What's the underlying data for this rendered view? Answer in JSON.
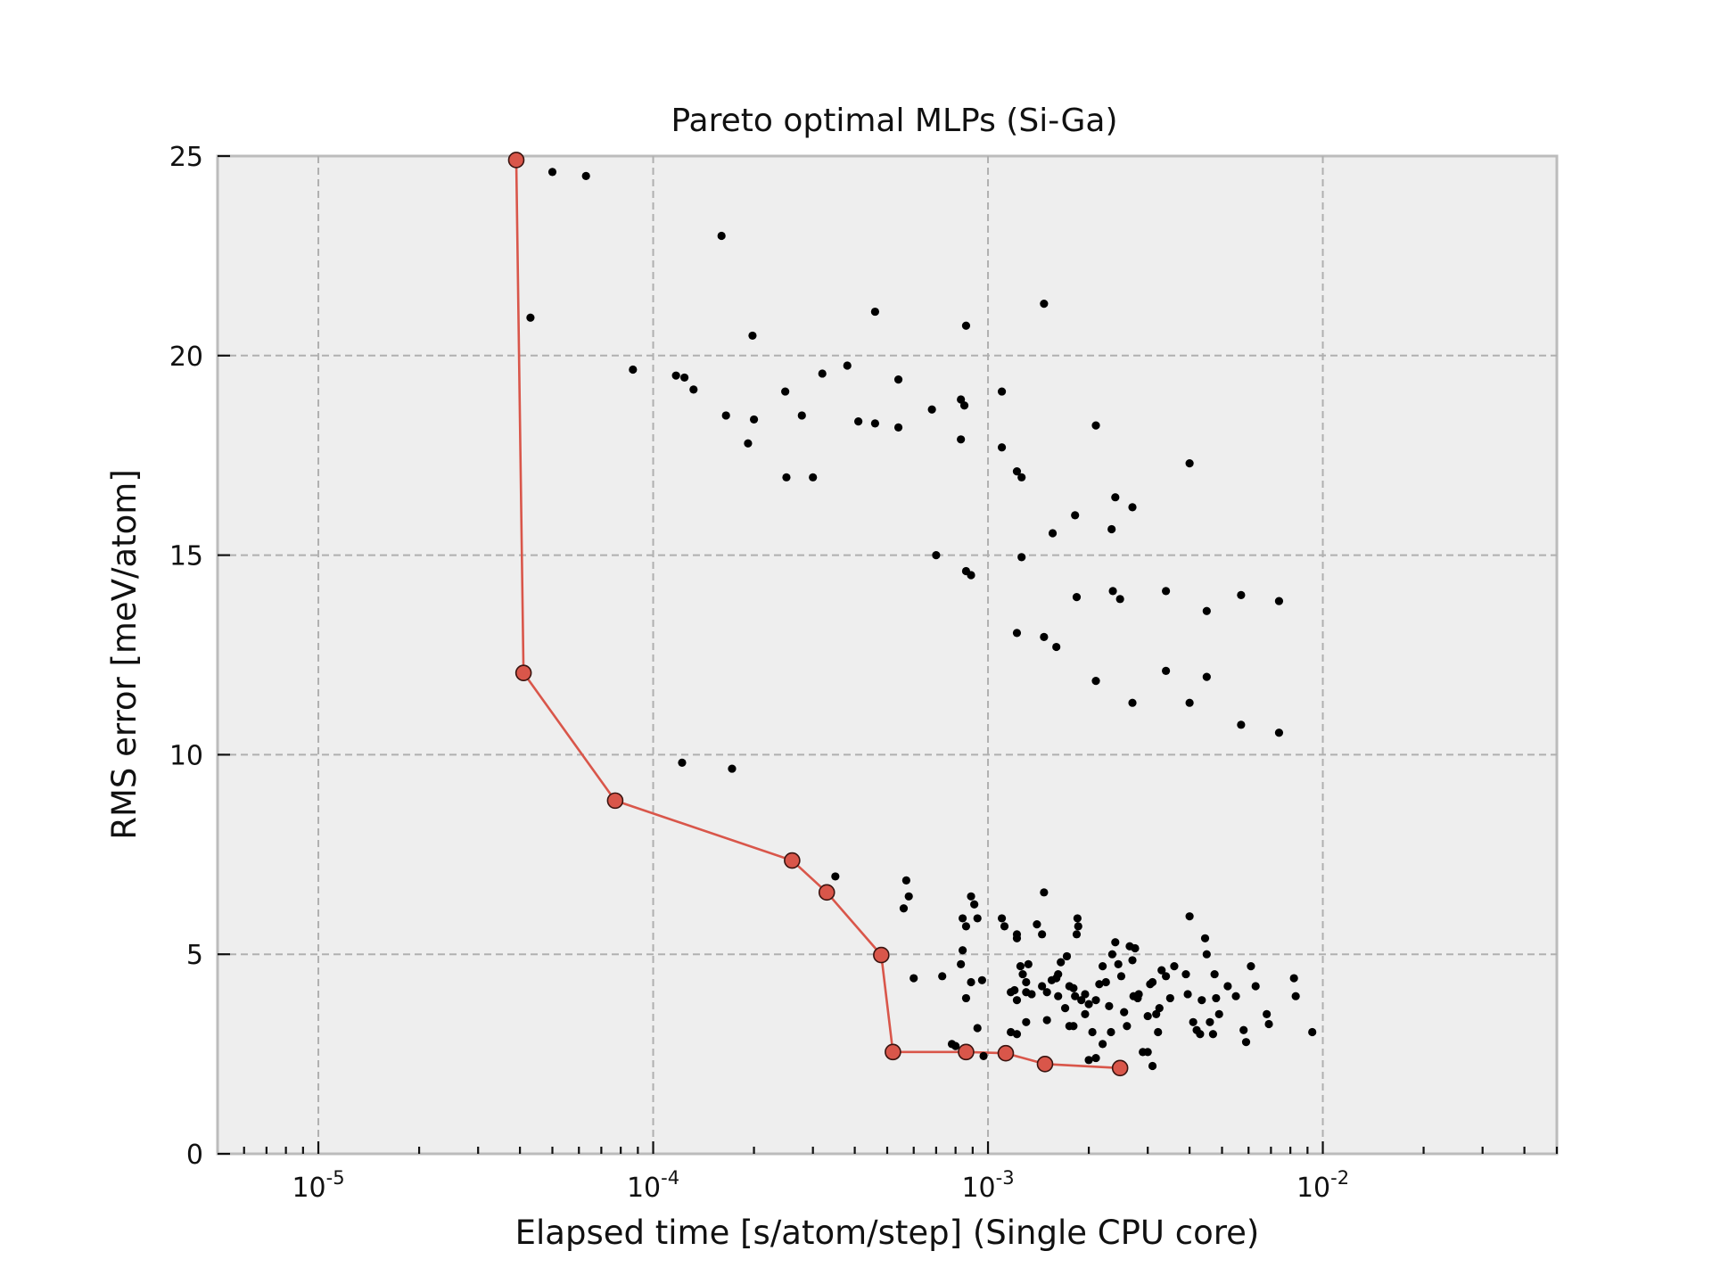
{
  "chart_data": {
    "type": "scatter",
    "title": "Pareto optimal MLPs (Si-Ga)",
    "xlabel": "Elapsed time [s/atom/step] (Single CPU core)",
    "ylabel": "RMS error [meV/atom]",
    "xscale": "log",
    "xlim": [
      5e-06,
      0.05
    ],
    "ylim": [
      0,
      25
    ],
    "grid": true,
    "x_ticks": [
      {
        "base": "10",
        "exp": "-5",
        "value": 1e-05
      },
      {
        "base": "10",
        "exp": "-4",
        "value": 0.0001
      },
      {
        "base": "10",
        "exp": "-3",
        "value": 0.001
      },
      {
        "base": "10",
        "exp": "-2",
        "value": 0.01
      }
    ],
    "y_ticks": [
      "0",
      "5",
      "10",
      "15",
      "20",
      "25"
    ],
    "colors": {
      "pareto": "#d9564a",
      "points": "#000000",
      "background": "#eeeeee"
    },
    "series": [
      {
        "type": "line",
        "points": [
          [
            3.9e-05,
            24.9
          ],
          [
            4.1e-05,
            12.05
          ],
          [
            7.7e-05,
            8.85
          ],
          [
            0.00026,
            7.35
          ],
          [
            0.00033,
            6.55
          ],
          [
            0.00048,
            4.98
          ],
          [
            0.00052,
            2.55
          ],
          [
            0.00086,
            2.55
          ],
          [
            0.00113,
            2.52
          ],
          [
            0.00148,
            2.25
          ],
          [
            0.00248,
            2.15
          ]
        ]
      },
      {
        "type": "scatter",
        "points": [
          [
            5e-05,
            24.6
          ],
          [
            6.3e-05,
            24.5
          ],
          [
            4.3e-05,
            20.95
          ],
          [
            0.00016,
            23.0
          ],
          [
            8.7e-05,
            19.65
          ],
          [
            0.000117,
            19.5
          ],
          [
            0.000124,
            19.45
          ],
          [
            0.000132,
            19.15
          ],
          [
            0.000198,
            20.5
          ],
          [
            0.000165,
            18.5
          ],
          [
            0.0002,
            18.4
          ],
          [
            0.000192,
            17.8
          ],
          [
            0.000248,
            19.1
          ],
          [
            0.000278,
            18.5
          ],
          [
            0.00025,
            16.95
          ],
          [
            0.0003,
            16.95
          ],
          [
            0.00032,
            19.55
          ],
          [
            0.00038,
            19.75
          ],
          [
            0.00041,
            18.35
          ],
          [
            0.00046,
            18.3
          ],
          [
            0.00046,
            21.1
          ],
          [
            0.00054,
            18.2
          ],
          [
            0.00054,
            19.4
          ],
          [
            0.00068,
            18.65
          ],
          [
            0.00083,
            18.9
          ],
          [
            0.00085,
            18.75
          ],
          [
            0.00086,
            20.75
          ],
          [
            0.00083,
            17.9
          ],
          [
            0.0011,
            19.1
          ],
          [
            0.0011,
            17.7
          ],
          [
            0.00122,
            17.1
          ],
          [
            0.00126,
            16.95
          ],
          [
            0.00147,
            21.3
          ],
          [
            0.0007,
            15.0
          ],
          [
            0.00086,
            14.6
          ],
          [
            0.00089,
            14.5
          ],
          [
            0.00126,
            14.95
          ],
          [
            0.00122,
            13.05
          ],
          [
            0.00147,
            12.95
          ],
          [
            0.0016,
            12.7
          ],
          [
            0.00156,
            15.55
          ],
          [
            0.00182,
            16.0
          ],
          [
            0.0021,
            18.25
          ],
          [
            0.00234,
            15.65
          ],
          [
            0.0024,
            16.45
          ],
          [
            0.0027,
            16.2
          ],
          [
            0.00184,
            13.95
          ],
          [
            0.00236,
            14.1
          ],
          [
            0.00248,
            13.9
          ],
          [
            0.0021,
            11.85
          ],
          [
            0.0027,
            11.3
          ],
          [
            0.0034,
            14.1
          ],
          [
            0.004,
            17.3
          ],
          [
            0.0045,
            13.6
          ],
          [
            0.0057,
            14.0
          ],
          [
            0.0074,
            13.85
          ],
          [
            0.0034,
            12.1
          ],
          [
            0.004,
            11.3
          ],
          [
            0.0045,
            11.95
          ],
          [
            0.0057,
            10.75
          ],
          [
            0.0074,
            10.55
          ],
          [
            0.000122,
            9.8
          ],
          [
            0.000172,
            9.65
          ],
          [
            0.00035,
            6.95
          ],
          [
            0.00057,
            6.85
          ],
          [
            0.00058,
            6.45
          ],
          [
            0.00056,
            6.15
          ],
          [
            0.0006,
            4.4
          ],
          [
            0.00073,
            4.45
          ],
          [
            0.00078,
            2.75
          ],
          [
            0.0008,
            2.7
          ],
          [
            0.00089,
            6.45
          ],
          [
            0.00091,
            6.25
          ],
          [
            0.00084,
            5.9
          ],
          [
            0.00086,
            5.7
          ],
          [
            0.00093,
            5.9
          ],
          [
            0.00084,
            5.1
          ],
          [
            0.00083,
            4.75
          ],
          [
            0.00086,
            3.9
          ],
          [
            0.00089,
            4.3
          ],
          [
            0.00096,
            4.35
          ],
          [
            0.00093,
            3.15
          ],
          [
            0.00097,
            2.45
          ],
          [
            0.0011,
            5.9
          ],
          [
            0.00112,
            5.7
          ],
          [
            0.00122,
            5.5
          ],
          [
            0.00122,
            5.4
          ],
          [
            0.00117,
            4.05
          ],
          [
            0.00125,
            4.7
          ],
          [
            0.00127,
            4.5
          ],
          [
            0.0012,
            4.1
          ],
          [
            0.0013,
            4.05
          ],
          [
            0.00122,
            3.85
          ],
          [
            0.00135,
            4.0
          ],
          [
            0.0013,
            4.3
          ],
          [
            0.00132,
            4.75
          ],
          [
            0.00117,
            3.05
          ],
          [
            0.00122,
            3.0
          ],
          [
            0.0013,
            3.3
          ],
          [
            0.0014,
            5.75
          ],
          [
            0.00147,
            6.55
          ],
          [
            0.00145,
            5.5
          ],
          [
            0.00145,
            4.2
          ],
          [
            0.0015,
            4.05
          ],
          [
            0.00155,
            4.35
          ],
          [
            0.0016,
            4.4
          ],
          [
            0.00162,
            4.5
          ],
          [
            0.0015,
            3.35
          ],
          [
            0.00162,
            3.95
          ],
          [
            0.0017,
            3.65
          ],
          [
            0.00172,
            4.95
          ],
          [
            0.00165,
            4.8
          ],
          [
            0.00175,
            4.2
          ],
          [
            0.00182,
            3.95
          ],
          [
            0.00185,
            5.9
          ],
          [
            0.00186,
            5.7
          ],
          [
            0.00184,
            5.5
          ],
          [
            0.0018,
            4.15
          ],
          [
            0.00175,
            3.2
          ],
          [
            0.0018,
            3.2
          ],
          [
            0.0019,
            3.85
          ],
          [
            0.00195,
            4.0
          ],
          [
            0.002,
            3.75
          ],
          [
            0.00195,
            3.5
          ],
          [
            0.00205,
            3.05
          ],
          [
            0.002,
            2.35
          ],
          [
            0.0021,
            2.4
          ],
          [
            0.0021,
            3.85
          ],
          [
            0.00215,
            4.25
          ],
          [
            0.0022,
            4.7
          ],
          [
            0.00225,
            4.3
          ],
          [
            0.0023,
            3.7
          ],
          [
            0.0022,
            2.75
          ],
          [
            0.00233,
            3.05
          ],
          [
            0.0024,
            5.3
          ],
          [
            0.00235,
            5.0
          ],
          [
            0.00245,
            4.75
          ],
          [
            0.0025,
            4.45
          ],
          [
            0.00255,
            3.55
          ],
          [
            0.0026,
            3.2
          ],
          [
            0.00265,
            5.2
          ],
          [
            0.00275,
            5.15
          ],
          [
            0.0027,
            4.85
          ],
          [
            0.00272,
            3.95
          ],
          [
            0.0028,
            3.9
          ],
          [
            0.00282,
            4.0
          ],
          [
            0.0029,
            2.55
          ],
          [
            0.003,
            2.55
          ],
          [
            0.0031,
            2.2
          ],
          [
            0.003,
            3.45
          ],
          [
            0.00305,
            4.25
          ],
          [
            0.0031,
            4.3
          ],
          [
            0.00318,
            3.5
          ],
          [
            0.00322,
            3.05
          ],
          [
            0.00325,
            3.65
          ],
          [
            0.0033,
            4.6
          ],
          [
            0.0034,
            4.45
          ],
          [
            0.0035,
            3.9
          ],
          [
            0.0036,
            4.7
          ],
          [
            0.004,
            5.95
          ],
          [
            0.0041,
            3.3
          ],
          [
            0.0042,
            3.1
          ],
          [
            0.0043,
            3.0
          ],
          [
            0.00435,
            3.85
          ],
          [
            0.00445,
            5.4
          ],
          [
            0.0045,
            5.0
          ],
          [
            0.0046,
            3.3
          ],
          [
            0.0047,
            3.0
          ],
          [
            0.00475,
            4.5
          ],
          [
            0.0048,
            3.9
          ],
          [
            0.0049,
            3.5
          ],
          [
            0.0052,
            4.2
          ],
          [
            0.0055,
            3.95
          ],
          [
            0.0058,
            3.1
          ],
          [
            0.0059,
            2.8
          ],
          [
            0.0061,
            4.7
          ],
          [
            0.0063,
            4.2
          ],
          [
            0.0068,
            3.5
          ],
          [
            0.0069,
            3.25
          ],
          [
            0.0082,
            4.4
          ],
          [
            0.0083,
            3.95
          ],
          [
            0.0093,
            3.05
          ],
          [
            0.0039,
            4.5
          ],
          [
            0.00395,
            4.0
          ]
        ]
      }
    ]
  }
}
